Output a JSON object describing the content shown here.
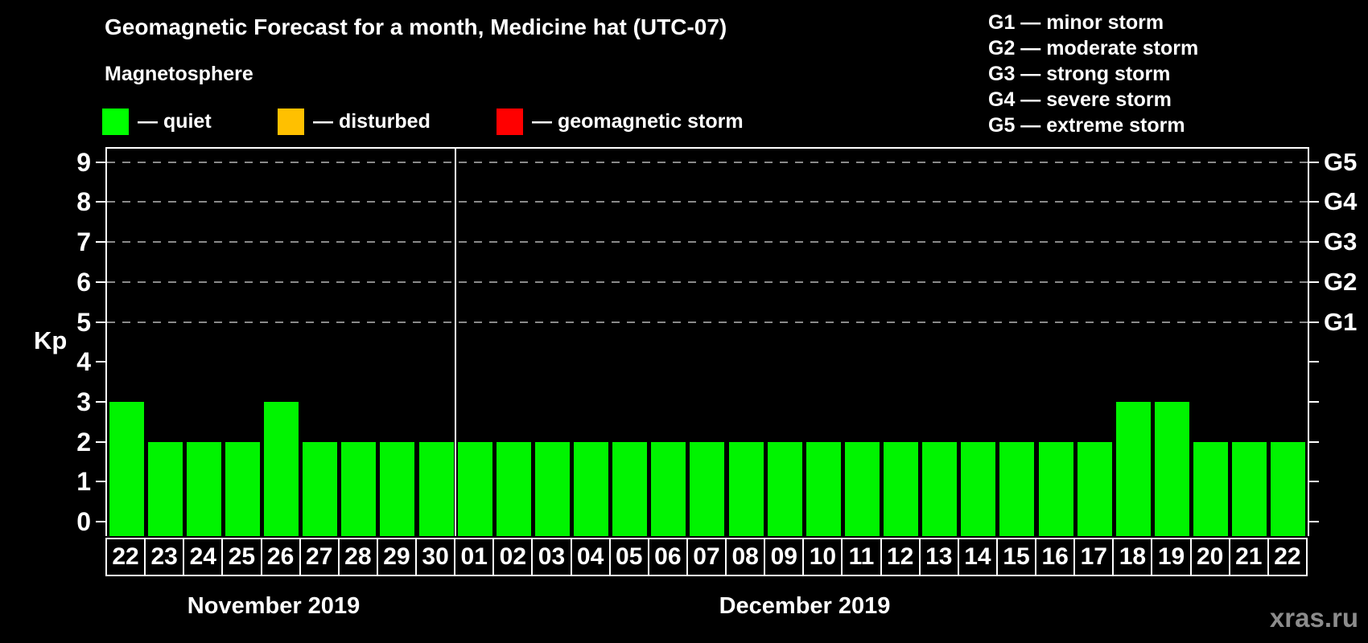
{
  "title": "Geomagnetic Forecast for a month, Medicine hat (UTC-07)",
  "watermark": "xras.ru",
  "legend": {
    "title": "Magnetosphere",
    "items": [
      {
        "name": "quiet",
        "label": "— quiet",
        "color": "#00ff00"
      },
      {
        "name": "disturbed",
        "label": "— disturbed",
        "color": "#ffc000"
      },
      {
        "name": "geomagnetic-storm",
        "label": "— geomagnetic storm",
        "color": "#ff0000"
      }
    ]
  },
  "g_legend": [
    "G1 — minor storm",
    "G2 — moderate storm",
    "G3 — strong storm",
    "G4 — severe storm",
    "G5 — extreme storm"
  ],
  "chart_data": {
    "type": "bar",
    "title": "Geomagnetic Forecast for a month, Medicine hat (UTC-07)",
    "ylabel": "Kp",
    "ylim": [
      -0.4,
      9.4
    ],
    "yticks": [
      0,
      1,
      2,
      3,
      4,
      5,
      6,
      7,
      8,
      9
    ],
    "grid_levels": [
      5,
      6,
      7,
      8,
      9
    ],
    "right_axis": [
      {
        "kp": 5,
        "label": "G1"
      },
      {
        "kp": 6,
        "label": "G2"
      },
      {
        "kp": 7,
        "label": "G3"
      },
      {
        "kp": 8,
        "label": "G4"
      },
      {
        "kp": 9,
        "label": "G5"
      }
    ],
    "bar_color": "#00f400",
    "bar_status": "quiet",
    "months": [
      {
        "label": "November 2019",
        "days": [
          "22",
          "23",
          "24",
          "25",
          "26",
          "27",
          "28",
          "29",
          "30"
        ],
        "values": [
          3,
          2,
          2,
          2,
          3,
          2,
          2,
          2,
          2
        ]
      },
      {
        "label": "December 2019",
        "days": [
          "01",
          "02",
          "03",
          "04",
          "05",
          "06",
          "07",
          "08",
          "09",
          "10",
          "11",
          "12",
          "13",
          "14",
          "15",
          "16",
          "17",
          "18",
          "19",
          "20",
          "21",
          "22"
        ],
        "values": [
          2,
          2,
          2,
          2,
          2,
          2,
          2,
          2,
          2,
          2,
          2,
          2,
          2,
          2,
          2,
          2,
          2,
          3,
          3,
          2,
          2,
          2
        ]
      }
    ]
  }
}
